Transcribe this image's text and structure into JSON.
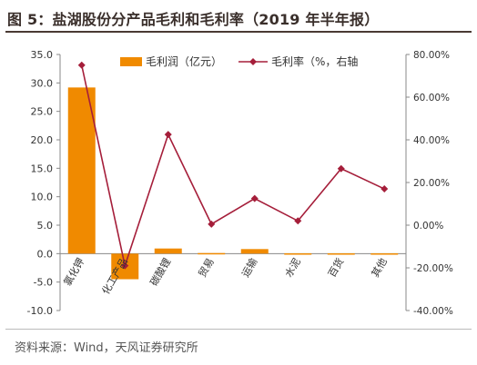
{
  "header": {
    "title": "图 5：盐湖股份分产品毛利和毛利率（2019 年半年报）"
  },
  "footer": {
    "source": "资料来源：Wind，天风证券研究所"
  },
  "colors": {
    "bar": "#f08a00",
    "line": "#a51e3a",
    "axis": "#888888",
    "text": "#333333"
  },
  "chart_data": {
    "type": "bar",
    "categories": [
      "氯化钾",
      "化工产品",
      "碳酸锂",
      "贸易",
      "运输",
      "水泥",
      "百货",
      "其他"
    ],
    "series": [
      {
        "name": "毛利润（亿元）",
        "type": "bar",
        "axis": "left",
        "values": [
          29.2,
          -4.5,
          0.9,
          0.1,
          0.8,
          0.05,
          0.05,
          0.05
        ]
      },
      {
        "name": "毛利率（%，右轴",
        "type": "line",
        "axis": "right",
        "values": [
          75.0,
          -19.0,
          42.5,
          0.5,
          12.5,
          2.0,
          26.5,
          17.0
        ]
      }
    ],
    "y_left": {
      "ticks": [
        "35.0",
        "30.0",
        "25.0",
        "20.0",
        "15.0",
        "10.0",
        "5.0",
        "0.0",
        "-5.0",
        "-10.0"
      ],
      "ylim": [
        -10,
        35
      ]
    },
    "y_right": {
      "ticks": [
        "80.00%",
        "60.00%",
        "40.00%",
        "20.00%",
        "0.00%",
        "-20.00%",
        "-40.00%"
      ],
      "ylim": [
        -40,
        80
      ]
    },
    "legend": "top"
  }
}
